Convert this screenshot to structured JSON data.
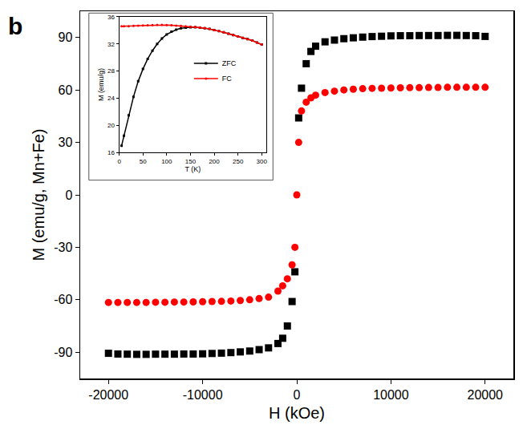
{
  "chart_data": [
    {
      "type": "scatter",
      "annotations": [
        "b"
      ],
      "x_label": "H (kOe)",
      "y_label": "M (emu/g, Mn+Fe)",
      "x": [
        -20000,
        -19000,
        -18000,
        -17000,
        -16000,
        -15000,
        -14000,
        -13000,
        -12000,
        -11000,
        -10000,
        -9000,
        -8000,
        -7000,
        -6000,
        -5000,
        -4000,
        -3000,
        -2000,
        -1500,
        -1000,
        -500,
        -200,
        0,
        200,
        500,
        1000,
        1500,
        2000,
        3000,
        4000,
        5000,
        6000,
        7000,
        8000,
        9000,
        10000,
        11000,
        12000,
        13000,
        14000,
        15000,
        16000,
        17000,
        18000,
        19000,
        20000
      ],
      "series": [
        {
          "color": "#000000",
          "marker": "square",
          "values": [
            -90.6,
            -91,
            -91.1,
            -91.2,
            -91.2,
            -91.1,
            -91.1,
            -91.1,
            -91,
            -91,
            -90.9,
            -90.7,
            -90.5,
            -90.2,
            -89.8,
            -89.3,
            -88.5,
            -87.5,
            -85,
            -82,
            -75,
            -61,
            -44,
            null,
            44,
            61,
            75,
            82,
            85,
            87.5,
            88.5,
            89.3,
            89.8,
            90.2,
            90.5,
            90.7,
            90.9,
            91,
            91,
            91.1,
            91.1,
            91.1,
            91.2,
            91.2,
            91.1,
            91,
            90.6
          ]
        },
        {
          "color": "#ff0000",
          "marker": "circle",
          "values": [
            -61.5,
            -61.5,
            -61.5,
            -61.5,
            -61.5,
            -61.4,
            -61.4,
            -61.3,
            -61.3,
            -61.2,
            -61.1,
            -61,
            -60.9,
            -60.7,
            -60.4,
            -60,
            -59.3,
            -58.5,
            -55,
            -52,
            -48,
            -40,
            -30,
            0,
            30,
            48,
            53,
            55.5,
            57,
            58.5,
            59.3,
            60,
            60.4,
            60.7,
            60.9,
            61,
            61.1,
            61.2,
            61.3,
            61.3,
            61.4,
            61.4,
            61.5,
            61.5,
            61.5,
            61.5,
            61.5
          ]
        }
      ],
      "xlim": [
        -23000,
        23000
      ],
      "xticks": [
        -20000,
        -10000,
        0,
        10000,
        20000
      ],
      "ylim": [
        -105,
        105
      ],
      "yticks": [
        -90,
        -60,
        -30,
        0,
        30,
        60,
        90
      ],
      "grid": false
    },
    {
      "type": "line",
      "x_label": "T (K)",
      "y_label": "M (emu/g)",
      "x": [
        5,
        10,
        20,
        30,
        40,
        50,
        60,
        70,
        80,
        90,
        100,
        110,
        120,
        130,
        140,
        150,
        160,
        170,
        180,
        190,
        200,
        210,
        220,
        230,
        240,
        250,
        260,
        270,
        280,
        290,
        300
      ],
      "series": [
        {
          "name": "ZFC",
          "color": "#000000",
          "marker": "square",
          "values": [
            17,
            18.5,
            21.5,
            24.2,
            26.5,
            28.3,
            29.8,
            31,
            32,
            32.8,
            33.4,
            33.8,
            34.1,
            34.3,
            34.4,
            34.45,
            34.45,
            34.4,
            34.3,
            34.2,
            34.05,
            33.9,
            33.7,
            33.5,
            33.3,
            33.1,
            32.9,
            32.7,
            32.5,
            32.2,
            31.9
          ]
        },
        {
          "name": "FC",
          "color": "#ff0000",
          "marker": "circle",
          "values": [
            34.6,
            34.6,
            34.6,
            34.65,
            34.7,
            34.72,
            34.75,
            34.78,
            34.8,
            34.8,
            34.78,
            34.75,
            34.7,
            34.65,
            34.6,
            34.55,
            34.5,
            34.42,
            34.32,
            34.2,
            34.05,
            33.9,
            33.7,
            33.5,
            33.3,
            33.1,
            32.9,
            32.7,
            32.5,
            32.2,
            31.9
          ]
        }
      ],
      "xlim": [
        0,
        310
      ],
      "xticks": [
        0,
        50,
        100,
        150,
        200,
        250,
        300
      ],
      "ylim": [
        16,
        36
      ],
      "yticks": [
        16,
        20,
        24,
        28,
        32,
        36
      ],
      "legend": "right",
      "grid": false
    }
  ]
}
